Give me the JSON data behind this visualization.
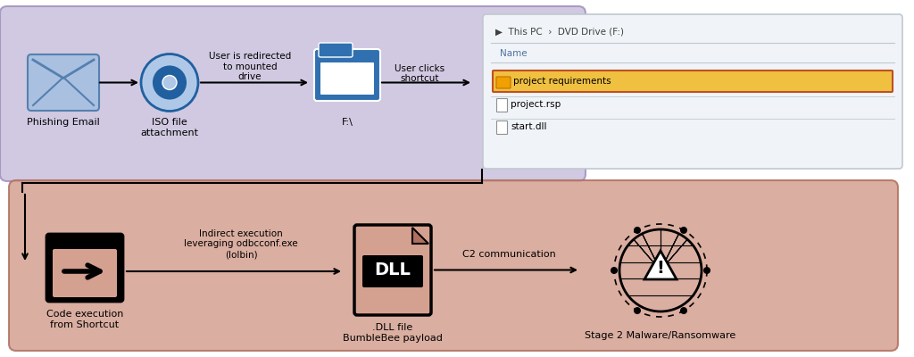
{
  "bg_color": "#ffffff",
  "top_box_color": "#c8c0dc",
  "top_box_edge": "#a090c0",
  "bottom_box_color": "#d4a090",
  "bottom_box_edge": "#b07060",
  "mail_icon_bg": "#aac0e0",
  "mail_icon_line": "#5580b0",
  "cd_outer": "#b0c8e8",
  "cd_inner": "#2060a0",
  "folder_outer": "#3070b0",
  "folder_inner": "#ffffff",
  "win_explorer_bg": "#f0f4f8",
  "win_explorer_border": "#c0c8d0",
  "highlight_row_bg": "#e8a020",
  "highlight_row_border": "#c05020",
  "top_labels": [
    "Phishing Email",
    "ISO file\nattachment",
    "F:\\",
    "User clicks\nshortcut"
  ],
  "top_mid_label": "User is redirected\nto mounted\ndrive",
  "bottom_labels": [
    "Code execution\nfrom Shortcut",
    ".DLL file\nBumbleBee payload",
    "Stage 2 Malware/Ransomware"
  ],
  "bottom_arrow1": "Indirect execution\nleveraging odbcconf.exe\n(lolbin)",
  "bottom_arrow2": "C2 communication",
  "explorer_title": "▶  This PC  ›  DVD Drive (F:)",
  "explorer_name_col": "Name",
  "explorer_files": [
    "project requirements",
    "project.rsp",
    "start.dll"
  ],
  "dll_label": "DLL"
}
